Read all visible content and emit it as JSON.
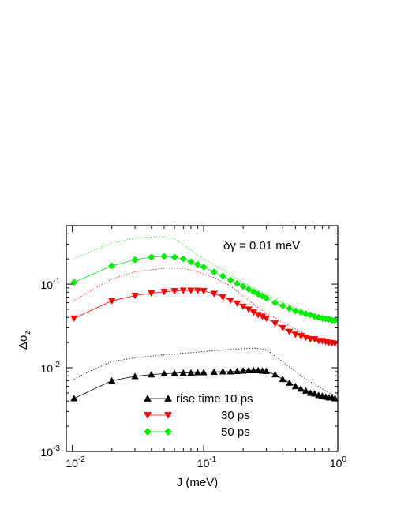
{
  "chart_data": {
    "type": "line",
    "xscale": "log",
    "yscale": "log",
    "xlim": [
      0.009,
      1.05
    ],
    "ylim": [
      0.001,
      0.5
    ],
    "xlabel": "J (meV)",
    "ylabel": "Δσ",
    "ylabel_sub": "z",
    "annotation": "δγ = 0.01 meV",
    "grid": false,
    "legend_position": "bottom-center",
    "x_ticks": [
      {
        "value": 0.01,
        "base": "10",
        "exp": "-2"
      },
      {
        "value": 0.1,
        "base": "10",
        "exp": "-1"
      },
      {
        "value": 1,
        "base": "10",
        "exp": "0"
      }
    ],
    "y_ticks": [
      {
        "value": 0.001,
        "base": "10",
        "exp": "-3"
      },
      {
        "value": 0.01,
        "base": "10",
        "exp": "-2"
      },
      {
        "value": 0.1,
        "base": "10",
        "exp": "-1"
      }
    ],
    "series": [
      {
        "name": "rise time 10 ps",
        "color": "#000000",
        "marker": "triangle-up",
        "x": [
          0.0103,
          0.02,
          0.03,
          0.04,
          0.05,
          0.06,
          0.07,
          0.08,
          0.09,
          0.1,
          0.12,
          0.14,
          0.16,
          0.18,
          0.2,
          0.22,
          0.24,
          0.26,
          0.28,
          0.3,
          0.35,
          0.4,
          0.45,
          0.5,
          0.55,
          0.6,
          0.65,
          0.7,
          0.75,
          0.8,
          0.85,
          0.9,
          0.95,
          1.0
        ],
        "y": [
          0.0043,
          0.007,
          0.0079,
          0.0083,
          0.0085,
          0.0086,
          0.0087,
          0.0087,
          0.0088,
          0.0088,
          0.0089,
          0.009,
          0.009,
          0.0091,
          0.0092,
          0.0093,
          0.0093,
          0.0093,
          0.0092,
          0.0091,
          0.0083,
          0.0073,
          0.0066,
          0.006,
          0.0056,
          0.0053,
          0.005,
          0.0049,
          0.0047,
          0.0046,
          0.0045,
          0.0044,
          0.0044,
          0.0043
        ]
      },
      {
        "name": "30 ps",
        "color": "#ff0000",
        "marker": "triangle-down",
        "x": [
          0.0103,
          0.02,
          0.03,
          0.04,
          0.05,
          0.06,
          0.07,
          0.08,
          0.09,
          0.1,
          0.12,
          0.14,
          0.16,
          0.18,
          0.2,
          0.22,
          0.24,
          0.26,
          0.28,
          0.3,
          0.35,
          0.4,
          0.45,
          0.5,
          0.55,
          0.6,
          0.65,
          0.7,
          0.75,
          0.8,
          0.85,
          0.9,
          0.95,
          1.0
        ],
        "y": [
          0.039,
          0.063,
          0.073,
          0.078,
          0.081,
          0.083,
          0.084,
          0.084,
          0.084,
          0.083,
          0.077,
          0.07,
          0.064,
          0.059,
          0.054,
          0.05,
          0.046,
          0.043,
          0.041,
          0.039,
          0.034,
          0.03,
          0.027,
          0.025,
          0.024,
          0.023,
          0.022,
          0.022,
          0.021,
          0.021,
          0.0205,
          0.02,
          0.0198,
          0.0195
        ]
      },
      {
        "name": "50 ps",
        "color": "#00ee00",
        "marker": "diamond",
        "x": [
          0.0103,
          0.02,
          0.03,
          0.04,
          0.05,
          0.06,
          0.07,
          0.08,
          0.09,
          0.1,
          0.12,
          0.14,
          0.16,
          0.18,
          0.2,
          0.22,
          0.24,
          0.26,
          0.28,
          0.3,
          0.35,
          0.4,
          0.45,
          0.5,
          0.55,
          0.6,
          0.65,
          0.7,
          0.75,
          0.8,
          0.85,
          0.9,
          0.95,
          1.0
        ],
        "y": [
          0.105,
          0.165,
          0.195,
          0.21,
          0.215,
          0.21,
          0.2,
          0.185,
          0.172,
          0.16,
          0.14,
          0.125,
          0.112,
          0.102,
          0.094,
          0.087,
          0.081,
          0.076,
          0.072,
          0.068,
          0.06,
          0.055,
          0.051,
          0.048,
          0.046,
          0.044,
          0.043,
          0.041,
          0.04,
          0.039,
          0.0385,
          0.038,
          0.037,
          0.037
        ]
      }
    ],
    "reference_curves": [
      {
        "color": "#000000",
        "style": "dotted",
        "x": [
          0.0103,
          0.015,
          0.02,
          0.03,
          0.05,
          0.08,
          0.12,
          0.18,
          0.25,
          0.3,
          0.4,
          0.5,
          0.6,
          0.7,
          0.8,
          0.9,
          1.0
        ],
        "y": [
          0.0073,
          0.0098,
          0.0118,
          0.0132,
          0.0143,
          0.0152,
          0.016,
          0.0168,
          0.0172,
          0.0165,
          0.0118,
          0.009,
          0.0073,
          0.0063,
          0.0056,
          0.005,
          0.0047
        ]
      },
      {
        "color": "#ff0000",
        "style": "dotted",
        "x": [
          0.0103,
          0.015,
          0.02,
          0.03,
          0.05,
          0.07,
          0.09,
          0.12,
          0.16,
          0.2,
          0.25,
          0.3,
          0.4,
          0.5,
          0.6,
          0.7,
          0.8,
          0.9,
          1.0
        ],
        "y": [
          0.063,
          0.09,
          0.115,
          0.14,
          0.155,
          0.155,
          0.14,
          0.12,
          0.095,
          0.072,
          0.055,
          0.045,
          0.035,
          0.029,
          0.025,
          0.023,
          0.021,
          0.02,
          0.019
        ]
      },
      {
        "color": "#00ee00",
        "style": "dotted",
        "x": [
          0.0103,
          0.015,
          0.02,
          0.03,
          0.045,
          0.06,
          0.07,
          0.09,
          0.12,
          0.16,
          0.2,
          0.3,
          0.4,
          0.5,
          0.6,
          0.7,
          0.8,
          0.9,
          1.0
        ],
        "y": [
          0.2,
          0.26,
          0.31,
          0.355,
          0.37,
          0.35,
          0.3,
          0.22,
          0.17,
          0.13,
          0.105,
          0.076,
          0.061,
          0.052,
          0.047,
          0.043,
          0.041,
          0.039,
          0.038
        ]
      }
    ]
  }
}
